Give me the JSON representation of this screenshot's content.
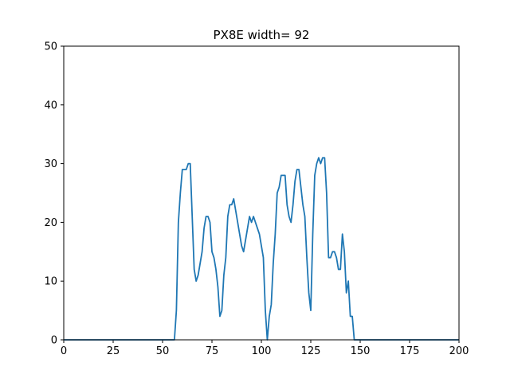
{
  "chart_data": {
    "type": "line",
    "title": "PX8E width= 92",
    "xlabel": "",
    "ylabel": "",
    "xlim": [
      0,
      200
    ],
    "ylim": [
      0,
      50
    ],
    "xticks": [
      0,
      25,
      50,
      75,
      100,
      125,
      150,
      175,
      200
    ],
    "yticks": [
      0,
      10,
      20,
      30,
      40,
      50
    ],
    "grid": false,
    "line_color": "#1f77b4",
    "series": [
      {
        "x": [
          0,
          1,
          2,
          3,
          4,
          5,
          6,
          7,
          8,
          9,
          10,
          11,
          12,
          13,
          14,
          15,
          16,
          17,
          18,
          19,
          20,
          21,
          22,
          23,
          24,
          25,
          26,
          27,
          28,
          29,
          30,
          31,
          32,
          33,
          34,
          35,
          36,
          37,
          38,
          39,
          40,
          41,
          42,
          43,
          44,
          45,
          46,
          47,
          48,
          49,
          50,
          51,
          52,
          53,
          54,
          55,
          56,
          57,
          58,
          59,
          60,
          61,
          62,
          63,
          64,
          65,
          66,
          67,
          68,
          69,
          70,
          71,
          72,
          73,
          74,
          75,
          76,
          77,
          78,
          79,
          80,
          81,
          82,
          83,
          84,
          85,
          86,
          87,
          88,
          89,
          90,
          91,
          92,
          93,
          94,
          95,
          96,
          97,
          98,
          99,
          100,
          101,
          102,
          103,
          104,
          105,
          106,
          107,
          108,
          109,
          110,
          111,
          112,
          113,
          114,
          115,
          116,
          117,
          118,
          119,
          120,
          121,
          122,
          123,
          124,
          125,
          126,
          127,
          128,
          129,
          130,
          131,
          132,
          133,
          134,
          135,
          136,
          137,
          138,
          139,
          140,
          141,
          142,
          143,
          144,
          145,
          146,
          147,
          148,
          149,
          150,
          151,
          152,
          153,
          154,
          155,
          156,
          157,
          158,
          159,
          160,
          161,
          162,
          163,
          164,
          165,
          166,
          167,
          168,
          169,
          170,
          171,
          172,
          173,
          174,
          175,
          176,
          177,
          178,
          179,
          180,
          181,
          182,
          183,
          184,
          185,
          186,
          187,
          188,
          189,
          190,
          191,
          192,
          193,
          194,
          195,
          196,
          197,
          198,
          199,
          200
        ],
        "values": [
          0,
          0,
          0,
          0,
          0,
          0,
          0,
          0,
          0,
          0,
          0,
          0,
          0,
          0,
          0,
          0,
          0,
          0,
          0,
          0,
          0,
          0,
          0,
          0,
          0,
          0,
          0,
          0,
          0,
          0,
          0,
          0,
          0,
          0,
          0,
          0,
          0,
          0,
          0,
          0,
          0,
          0,
          0,
          0,
          0,
          0,
          0,
          0,
          0,
          0,
          0,
          0,
          0,
          0,
          0,
          0,
          0,
          5,
          20,
          25,
          29,
          29,
          29,
          30,
          30,
          21,
          12,
          10,
          11,
          13,
          15,
          19,
          21,
          21,
          20,
          15,
          14,
          12,
          9,
          4,
          5,
          11,
          14,
          21,
          23,
          23,
          24,
          22,
          20,
          18,
          16,
          15,
          17,
          19,
          21,
          20,
          21,
          20,
          19,
          18,
          16,
          14,
          5,
          0,
          4,
          6,
          13,
          18,
          25,
          26,
          28,
          28,
          28,
          23,
          21,
          20,
          23,
          27,
          29,
          29,
          26,
          23,
          21,
          14,
          8,
          5,
          18,
          28,
          30,
          31,
          30,
          31,
          31,
          25,
          14,
          14,
          15,
          15,
          14,
          12,
          12,
          18,
          15,
          8,
          10,
          4,
          4,
          0,
          0,
          0,
          0,
          0,
          0,
          0,
          0,
          0,
          0,
          0,
          0,
          0,
          0,
          0,
          0,
          0,
          0,
          0,
          0,
          0,
          0,
          0,
          0,
          0,
          0,
          0,
          0,
          0,
          0,
          0,
          0,
          0,
          0,
          0,
          0,
          0,
          0,
          0,
          0,
          0,
          0,
          0,
          0,
          0,
          0,
          0,
          0,
          0,
          0,
          0,
          0,
          0,
          0
        ]
      }
    ]
  }
}
